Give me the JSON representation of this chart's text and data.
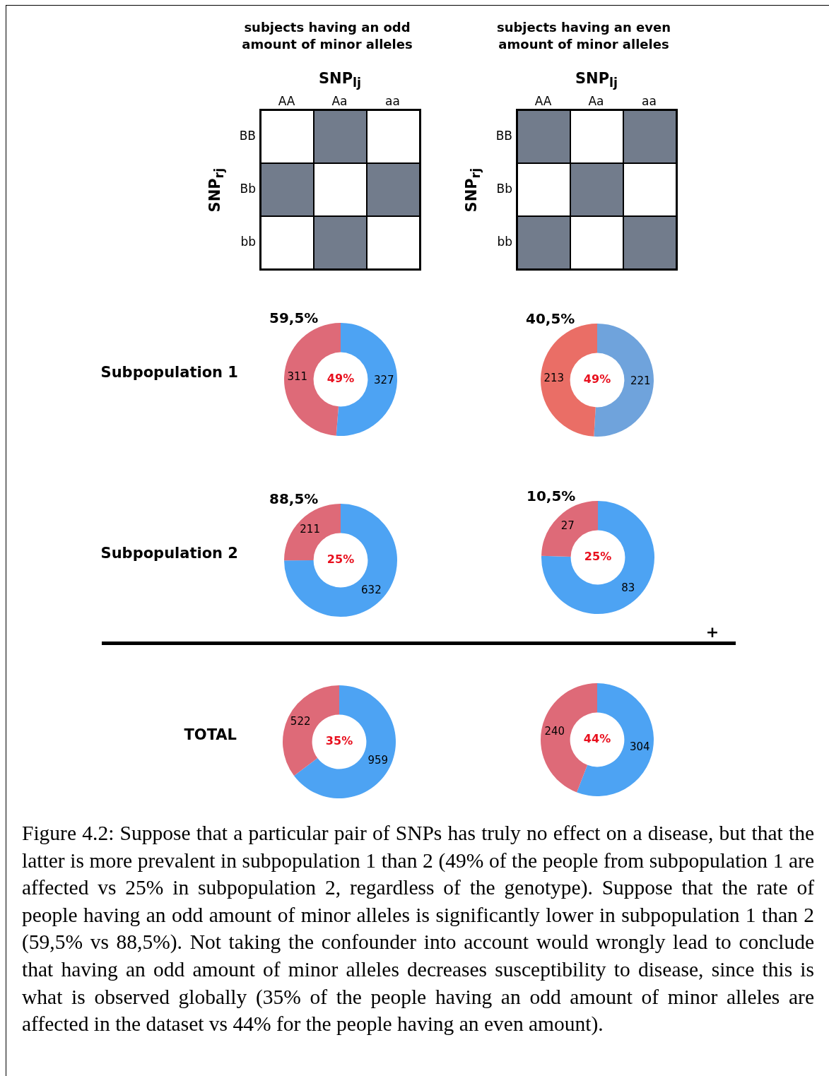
{
  "chart_data": [
    {
      "type": "other",
      "title": "subjects having an odd amount of minor alleles",
      "xlabel": "SNP$_{lj}$",
      "ylabel": "SNP$_{rj}$",
      "categories": [
        "AA",
        "Aa",
        "aa"
      ],
      "y_categories": [
        "BB",
        "Bb",
        "bb"
      ],
      "colors": [
        [
          "#ffffff",
          "#727c8c",
          "#ffffff"
        ],
        [
          "#727c8c",
          "#ffffff",
          "#727c8c"
        ],
        [
          "#ffffff",
          "#727c8c",
          "#ffffff"
        ]
      ]
    },
    {
      "type": "other",
      "title": "subjects having an even amount of minor alleles",
      "xlabel": "SNP$_{lj}$",
      "ylabel": "SNP$_{rj}$",
      "categories": [
        "AA",
        "Aa",
        "aa"
      ],
      "y_categories": [
        "BB",
        "Bb",
        "bb"
      ],
      "colors": [
        [
          "#727c8c",
          "#ffffff",
          "#727c8c"
        ],
        [
          "#ffffff",
          "#727c8c",
          "#ffffff"
        ],
        [
          "#727c8c",
          "#ffffff",
          "#727c8c"
        ]
      ]
    },
    {
      "type": "donut",
      "title": "59,5%",
      "ylabel": "Subpopulation 1",
      "categories": [
        null,
        null
      ],
      "values": [
        327,
        311
      ],
      "colors": [
        "#4da3f3",
        "#de6a78"
      ],
      "data_labels": true,
      "annotations": [
        "49%"
      ]
    },
    {
      "type": "donut",
      "title": "40,5%",
      "categories": [
        null,
        null
      ],
      "values": [
        221,
        213
      ],
      "colors": [
        "#6fa3dc",
        "#ea6e66"
      ],
      "data_labels": true,
      "annotations": [
        "49%"
      ]
    },
    {
      "type": "donut",
      "title": "88,5%",
      "ylabel": "Subpopulation 2",
      "categories": [
        null,
        null
      ],
      "values": [
        632,
        211
      ],
      "colors": [
        "#4da3f3",
        "#de6a78"
      ],
      "data_labels": true,
      "annotations": [
        "25%"
      ]
    },
    {
      "type": "donut",
      "title": "10,5%",
      "categories": [
        null,
        null
      ],
      "values": [
        83,
        27
      ],
      "colors": [
        "#4da3f3",
        "#de6a78"
      ],
      "data_labels": true,
      "annotations": [
        "25%"
      ]
    },
    {
      "type": "other",
      "annotations": [
        "+"
      ]
    },
    {
      "type": "donut",
      "ylabel": "TOTAL",
      "categories": [
        null,
        null
      ],
      "values": [
        959,
        522
      ],
      "colors": [
        "#4da3f3",
        "#de6a78"
      ],
      "data_labels": true,
      "annotations": [
        "35%"
      ]
    },
    {
      "type": "donut",
      "categories": [
        null,
        null
      ],
      "values": [
        304,
        240
      ],
      "colors": [
        "#4da3f3",
        "#de6a78"
      ],
      "data_labels": true,
      "annotations": [
        "44%"
      ]
    },
    {
      "type": "other",
      "annotations": [
        "Figure 4.2: Suppose that a particular pair of SNPs has truly no effect on a disease, but that the latter is more prevalent in subpopulation 1 than 2 (49% of the people from subpopulation 1 are affected vs 25% in subpopulation 2, regardless of the genotype). Suppose that the rate of people having an odd amount of minor alleles is significantly lower in subpopulation 1 than 2 (59,5% vs 88,5%). Not taking the confounder into account would wrongly lead to conclude that having an odd amount of minor alleles decreases susceptibility to disease, since this is what is observed globally (35% of the people having an odd amount of minor alleles are affected in the dataset vs 44% for the people having an even amount)."
      ]
    }
  ]
}
